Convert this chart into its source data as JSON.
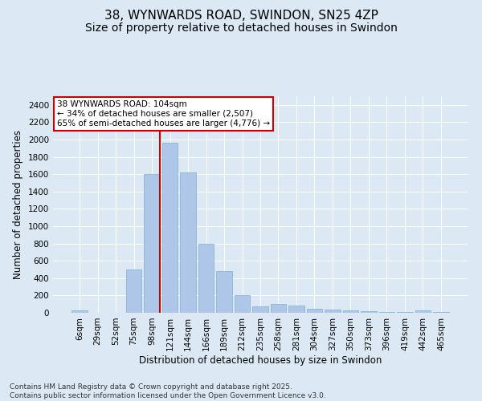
{
  "title1": "38, WYNWARDS ROAD, SWINDON, SN25 4ZP",
  "title2": "Size of property relative to detached houses in Swindon",
  "xlabel": "Distribution of detached houses by size in Swindon",
  "ylabel": "Number of detached properties",
  "categories": [
    "6sqm",
    "29sqm",
    "52sqm",
    "75sqm",
    "98sqm",
    "121sqm",
    "144sqm",
    "166sqm",
    "189sqm",
    "212sqm",
    "235sqm",
    "258sqm",
    "281sqm",
    "304sqm",
    "327sqm",
    "350sqm",
    "373sqm",
    "396sqm",
    "419sqm",
    "442sqm",
    "465sqm"
  ],
  "values": [
    30,
    2,
    2,
    500,
    1600,
    1960,
    1620,
    800,
    480,
    200,
    70,
    100,
    80,
    50,
    40,
    30,
    20,
    10,
    5,
    30,
    5
  ],
  "bar_color": "#aec6e8",
  "bar_edge_color": "#7aafd4",
  "vline_x_index": 4.43,
  "vline_color": "#cc0000",
  "annotation_text": "38 WYNWARDS ROAD: 104sqm\n← 34% of detached houses are smaller (2,507)\n65% of semi-detached houses are larger (4,776) →",
  "annotation_box_color": "#ffffff",
  "annotation_box_edge": "#cc0000",
  "ylim": [
    0,
    2500
  ],
  "yticks": [
    0,
    200,
    400,
    600,
    800,
    1000,
    1200,
    1400,
    1600,
    1800,
    2000,
    2200,
    2400
  ],
  "bg_color": "#dce9f5",
  "plot_bg_color": "#dce9f5",
  "footer": "Contains HM Land Registry data © Crown copyright and database right 2025.\nContains public sector information licensed under the Open Government Licence v3.0.",
  "title_fontsize": 11,
  "subtitle_fontsize": 10,
  "axis_label_fontsize": 8.5,
  "tick_fontsize": 7.5,
  "annotation_fontsize": 7.5,
  "footer_fontsize": 6.5,
  "font_family": "DejaVu Sans"
}
